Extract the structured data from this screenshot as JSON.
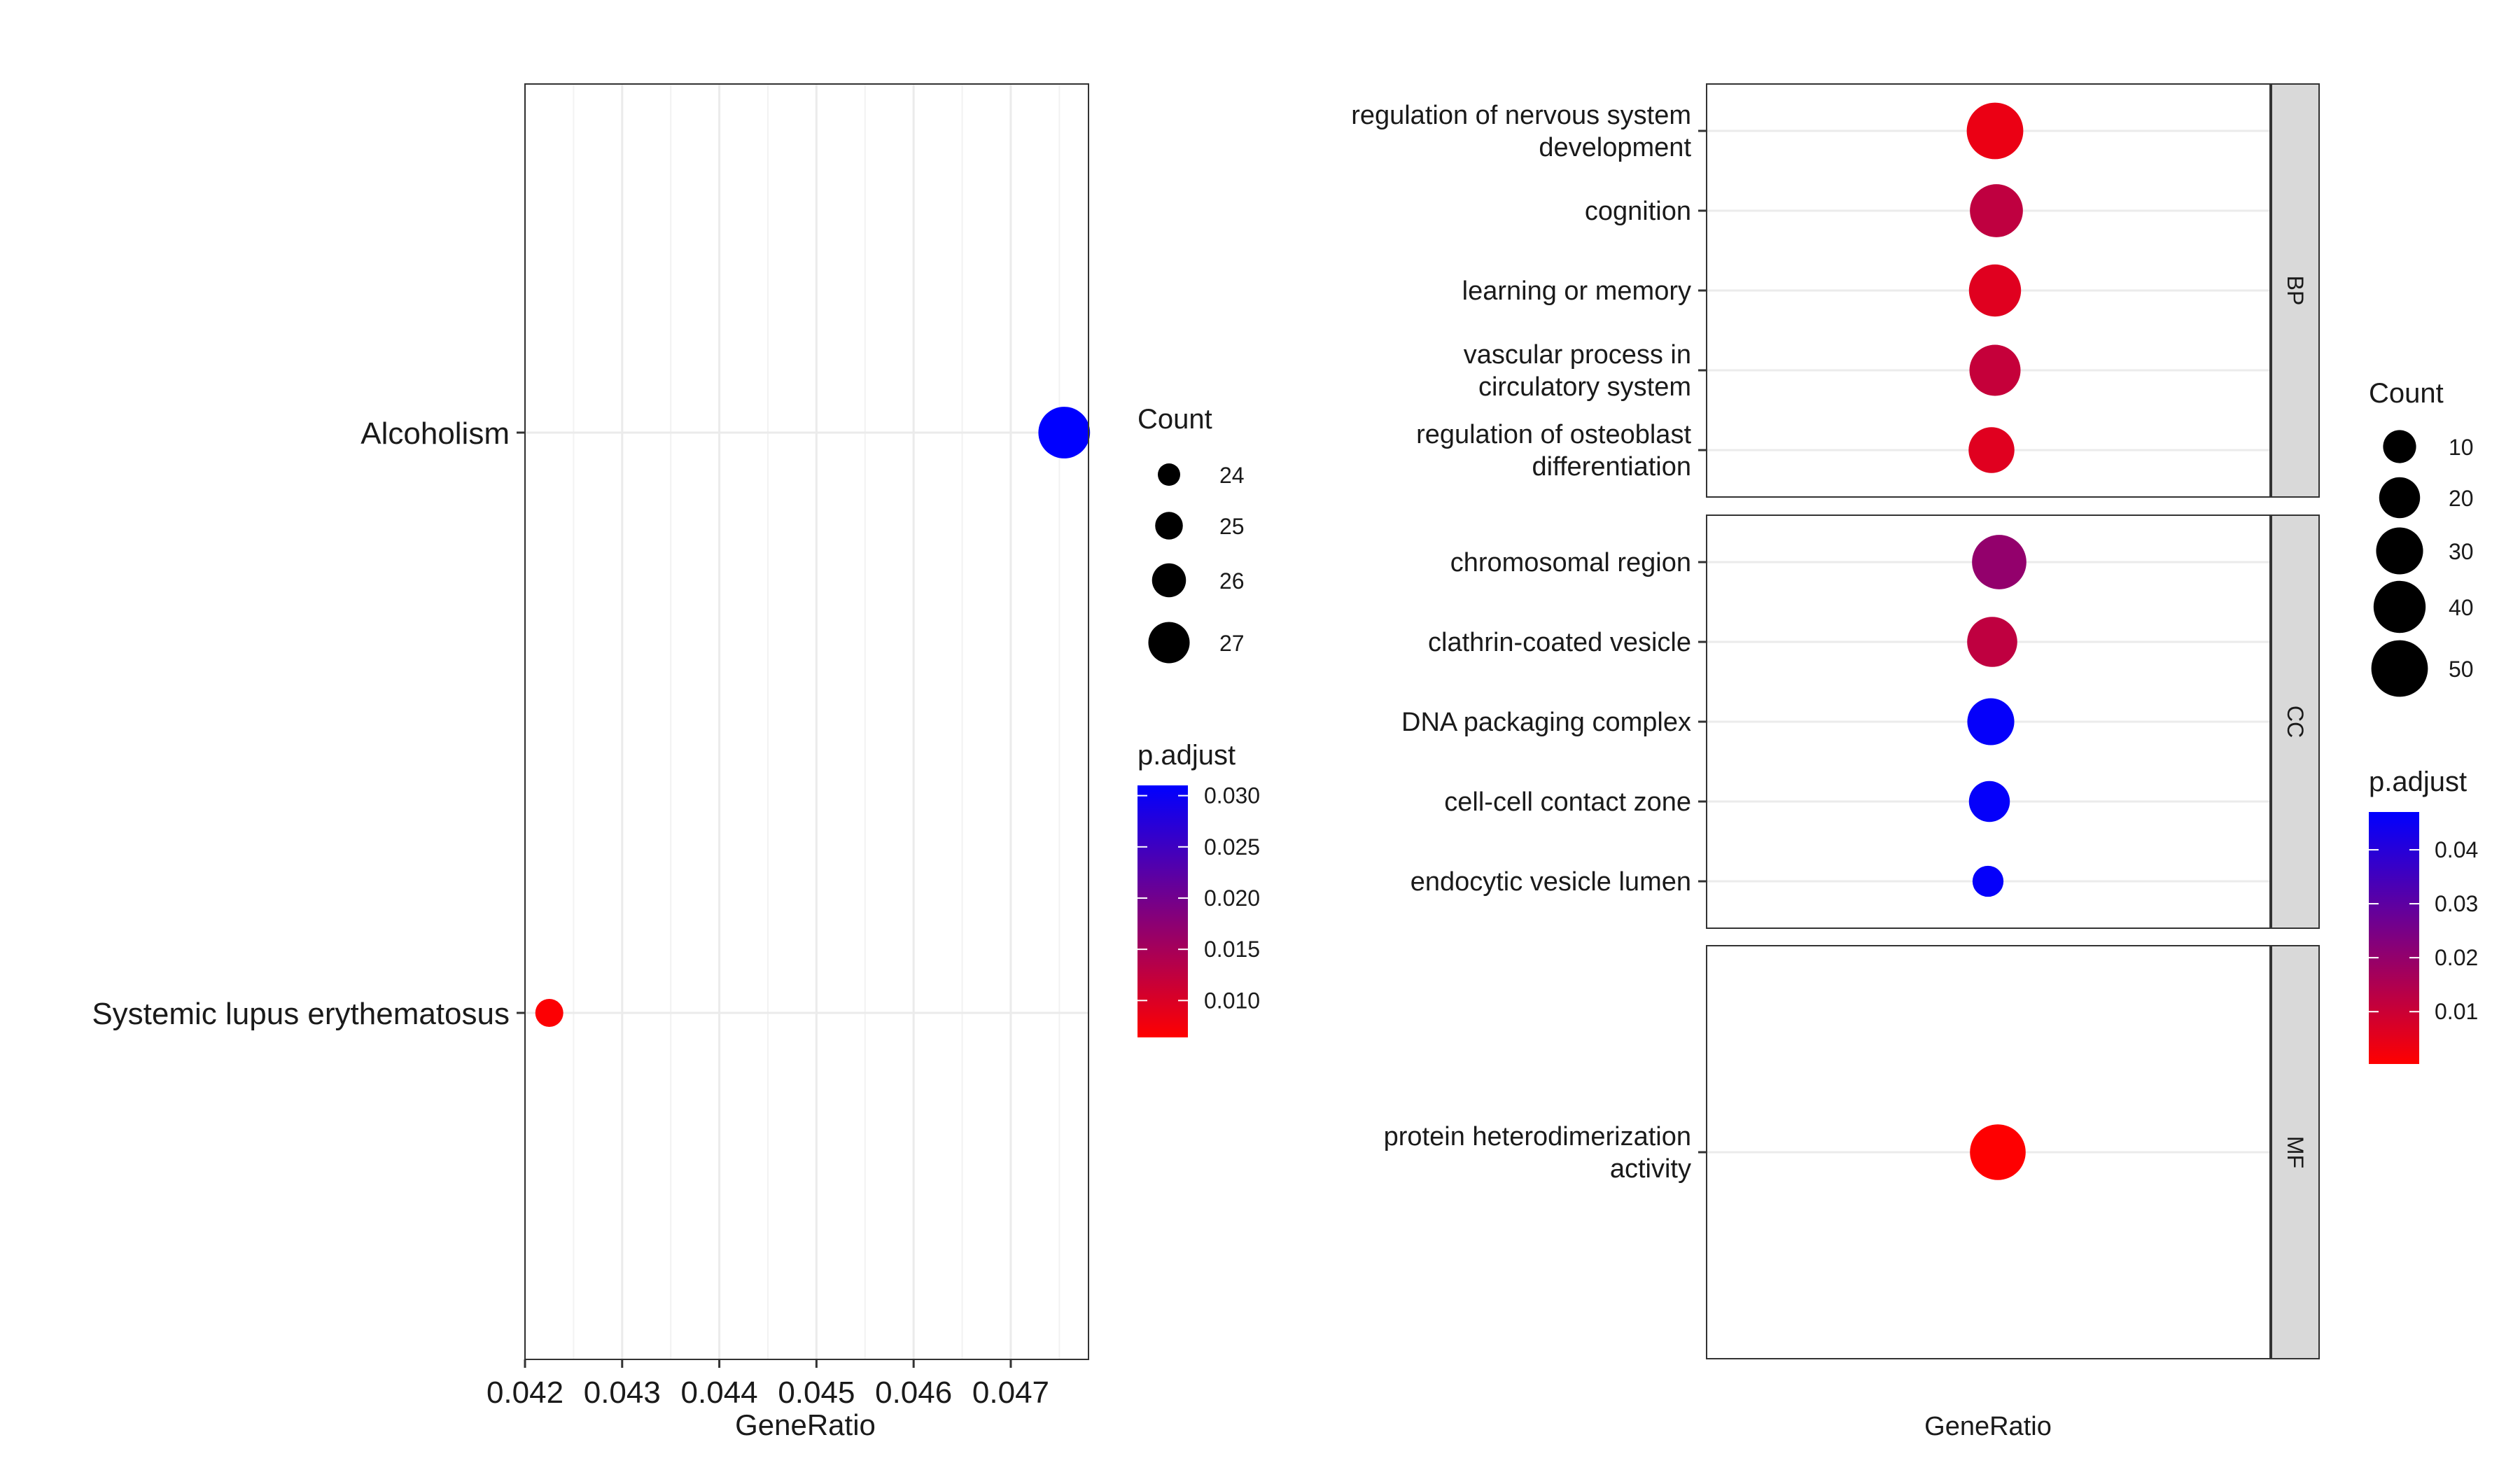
{
  "chart_data": [
    {
      "type": "scatter",
      "xlabel": "GeneRatio",
      "xlim": [
        0.042,
        0.0478
      ],
      "x_ticks": [
        "0.042",
        "0.043",
        "0.044",
        "0.045",
        "0.046",
        "0.047"
      ],
      "categories": [
        "Alcoholism",
        "Systemic lupus erythematosus"
      ],
      "points": [
        {
          "term": "Alcoholism",
          "x": 0.04755,
          "count": 27,
          "p_adjust": 0.031
        },
        {
          "term": "Systemic lupus erythematosus",
          "x": 0.04225,
          "count": 24,
          "p_adjust": 0.0067
        }
      ],
      "legend": {
        "size_title": "Count",
        "size_values": [
          24,
          25,
          26,
          27
        ],
        "size_labels": [
          "24",
          "25",
          "26",
          "27"
        ],
        "color_title": "p.adjust",
        "color_labels": [
          "0.030",
          "0.025",
          "0.020",
          "0.015",
          "0.010"
        ],
        "color_values": [
          0.03,
          0.025,
          0.02,
          0.015,
          0.01
        ],
        "color_range": [
          0.0064,
          0.031
        ],
        "low_color": "#ff0000",
        "high_color": "#0000ff"
      }
    },
    {
      "type": "scatter",
      "xlabel": "GeneRatio",
      "facets": [
        {
          "label": "BP",
          "terms": [
            {
              "term": "regulation of nervous system development",
              "lines": [
                "regulation of nervous system",
                "development"
              ],
              "count": 50,
              "p_adjust": 0.004
            },
            {
              "term": "cognition",
              "lines": [
                "cognition"
              ],
              "count": 42,
              "p_adjust": 0.012
            },
            {
              "term": "learning or memory",
              "lines": [
                "learning or memory"
              ],
              "count": 40,
              "p_adjust": 0.006
            },
            {
              "term": "vascular process in circulatory system",
              "lines": [
                "vascular process in",
                "circulatory system"
              ],
              "count": 38,
              "p_adjust": 0.011
            },
            {
              "term": "regulation of osteoblast differentiation",
              "lines": [
                "regulation of osteoblast",
                "differentiation"
              ],
              "count": 28,
              "p_adjust": 0.006
            }
          ]
        },
        {
          "label": "CC",
          "terms": [
            {
              "term": "chromosomal region",
              "lines": [
                "chromosomal region"
              ],
              "count": 45,
              "p_adjust": 0.02
            },
            {
              "term": "clathrin-coated vesicle",
              "lines": [
                "clathrin-coated vesicle"
              ],
              "count": 36,
              "p_adjust": 0.012
            },
            {
              "term": "DNA packaging complex",
              "lines": [
                "DNA packaging complex"
              ],
              "count": 30,
              "p_adjust": 0.046
            },
            {
              "term": "cell-cell contact zone",
              "lines": [
                "cell-cell contact zone"
              ],
              "count": 20,
              "p_adjust": 0.046
            },
            {
              "term": "endocytic vesicle lumen",
              "lines": [
                "endocytic vesicle lumen"
              ],
              "count": 8,
              "p_adjust": 0.046
            }
          ]
        },
        {
          "label": "MF",
          "terms": [
            {
              "term": "protein heterodimerization activity",
              "lines": [
                "protein heterodimerization",
                "activity"
              ],
              "count": 48,
              "p_adjust": 0.0005
            }
          ]
        }
      ],
      "legend": {
        "size_title": "Count",
        "size_values": [
          10,
          20,
          30,
          40,
          50
        ],
        "size_labels": [
          "10",
          "20",
          "30",
          "40",
          "50"
        ],
        "color_title": "p.adjust",
        "color_labels": [
          "0.04",
          "0.03",
          "0.02",
          "0.01"
        ],
        "color_values": [
          0.04,
          0.03,
          0.02,
          0.01
        ],
        "color_range": [
          0.0003,
          0.047
        ],
        "low_color": "#ff0000",
        "high_color": "#0000ff"
      }
    }
  ]
}
